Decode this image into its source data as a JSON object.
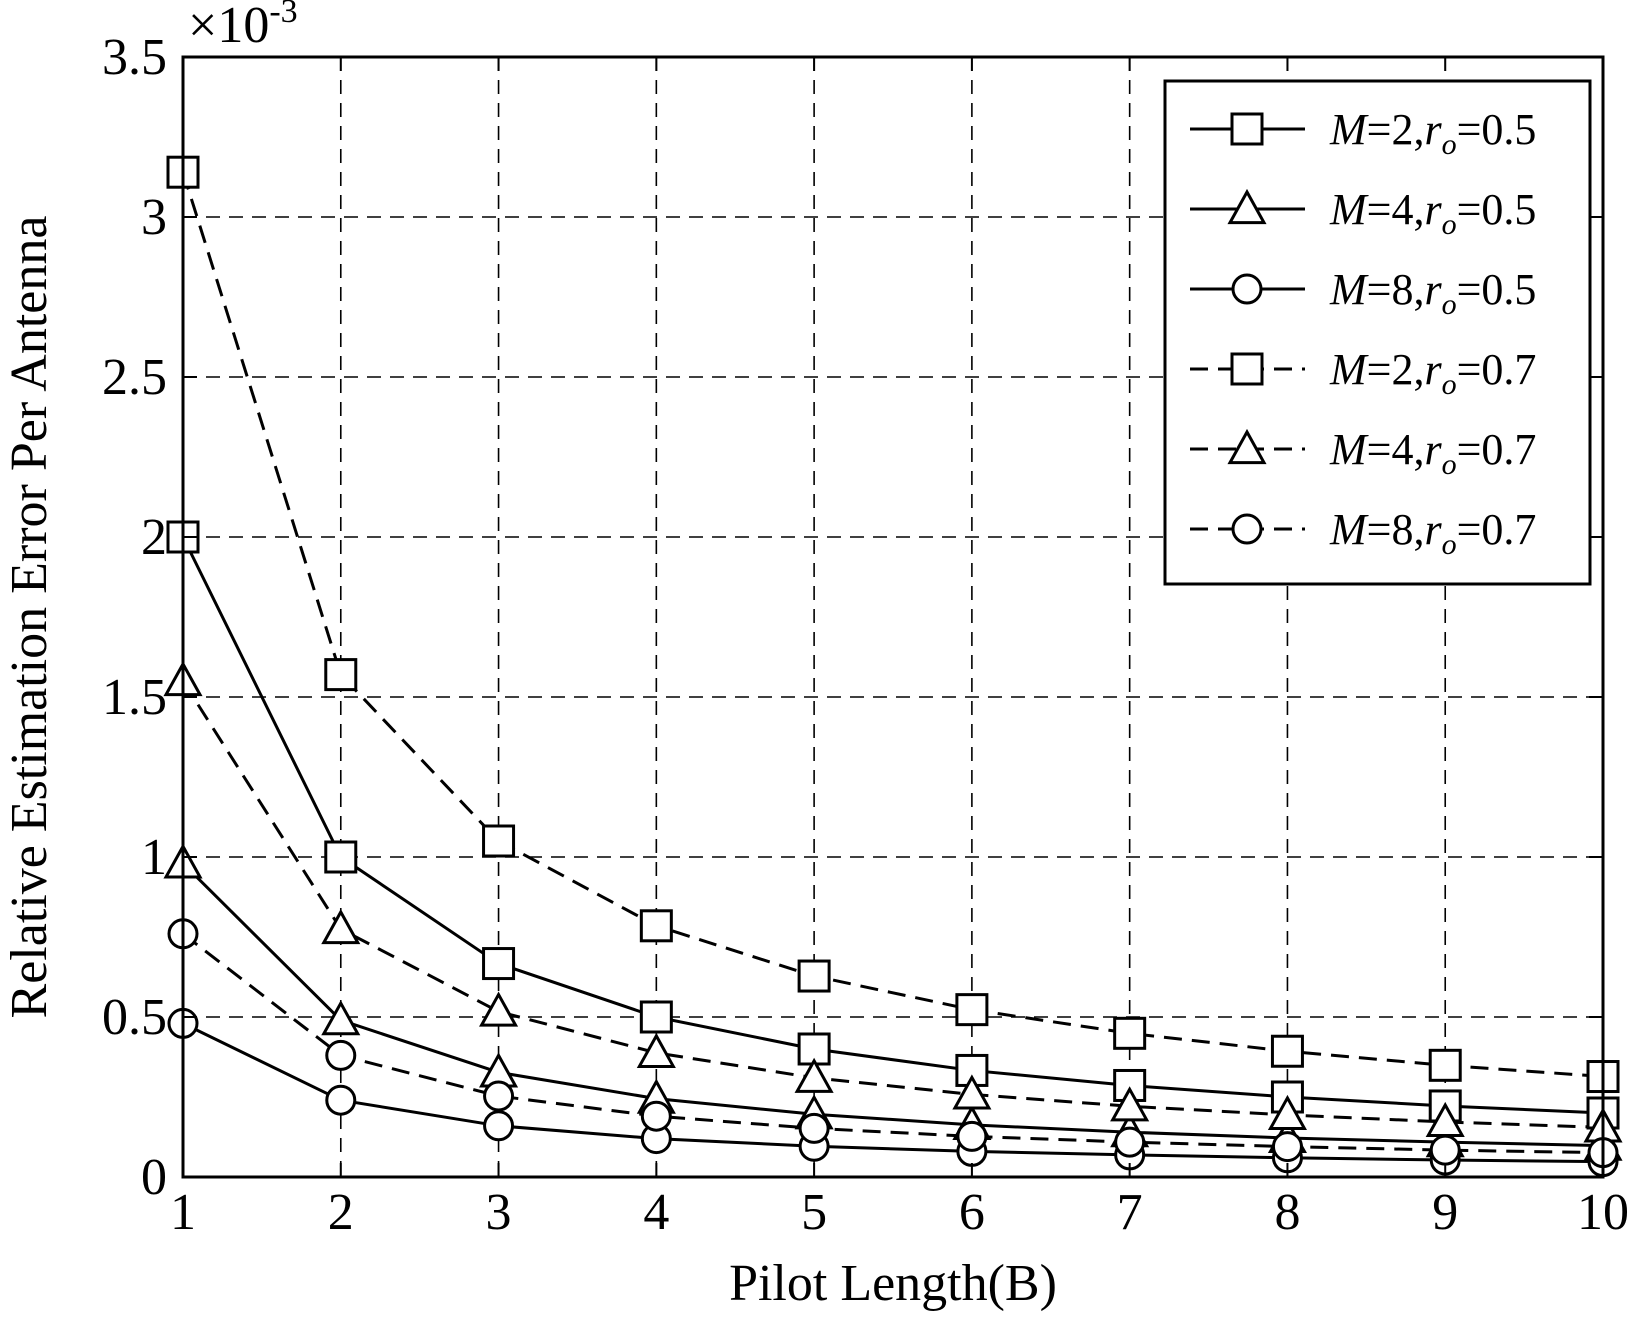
{
  "chart_data": {
    "type": "line",
    "title": "",
    "xlabel": "Pilot Length(B)",
    "ylabel": "Relative Estimation Error Per Antenna",
    "y_multiplier": "×10-3",
    "y_multiplier_base": "×10",
    "y_multiplier_exp": "-3",
    "xlim": [
      1,
      10
    ],
    "ylim": [
      0,
      3.5
    ],
    "grid": true,
    "legend_position": "top-right",
    "x": [
      1,
      2,
      3,
      4,
      5,
      6,
      7,
      8,
      9,
      10
    ],
    "x_ticks": [
      "1",
      "2",
      "3",
      "4",
      "5",
      "6",
      "7",
      "8",
      "9",
      "10"
    ],
    "y_ticks": [
      "0",
      "0.5",
      "1",
      "1.5",
      "2",
      "2.5",
      "3",
      "3.5"
    ],
    "y_tick_values": [
      0,
      0.5,
      1,
      1.5,
      2,
      2.5,
      3,
      3.5
    ],
    "series": [
      {
        "label_pre": "M",
        "label_mid": "=2,",
        "label_r": "r",
        "label_sub": "o",
        "label_post": "=0.5",
        "line_style": "solid",
        "marker": "square",
        "values": [
          2.0,
          1.0,
          0.667,
          0.5,
          0.4,
          0.333,
          0.286,
          0.25,
          0.222,
          0.2
        ]
      },
      {
        "label_pre": "M",
        "label_mid": "=4,",
        "label_r": "r",
        "label_sub": "o",
        "label_post": "=0.5",
        "line_style": "solid",
        "marker": "triangle",
        "values": [
          0.98,
          0.49,
          0.327,
          0.245,
          0.196,
          0.163,
          0.14,
          0.122,
          0.109,
          0.098
        ]
      },
      {
        "label_pre": "M",
        "label_mid": "=8,",
        "label_r": "r",
        "label_sub": "o",
        "label_post": "=0.5",
        "line_style": "solid",
        "marker": "circle",
        "values": [
          0.48,
          0.24,
          0.16,
          0.12,
          0.096,
          0.08,
          0.069,
          0.06,
          0.053,
          0.048
        ]
      },
      {
        "label_pre": "M",
        "label_mid": "=2,",
        "label_r": "r",
        "label_sub": "o",
        "label_post": "=0.7",
        "line_style": "dashed",
        "marker": "square",
        "values": [
          3.14,
          1.57,
          1.05,
          0.785,
          0.628,
          0.523,
          0.449,
          0.393,
          0.349,
          0.314
        ]
      },
      {
        "label_pre": "M",
        "label_mid": "=4,",
        "label_r": "r",
        "label_sub": "o",
        "label_post": "=0.7",
        "line_style": "dashed",
        "marker": "triangle",
        "values": [
          1.55,
          0.775,
          0.517,
          0.388,
          0.31,
          0.258,
          0.221,
          0.194,
          0.172,
          0.155
        ]
      },
      {
        "label_pre": "M",
        "label_mid": "=8,",
        "label_r": "r",
        "label_sub": "o",
        "label_post": "=0.7",
        "line_style": "dashed",
        "marker": "circle",
        "values": [
          0.76,
          0.38,
          0.253,
          0.19,
          0.152,
          0.127,
          0.109,
          0.095,
          0.084,
          0.076
        ]
      }
    ]
  }
}
